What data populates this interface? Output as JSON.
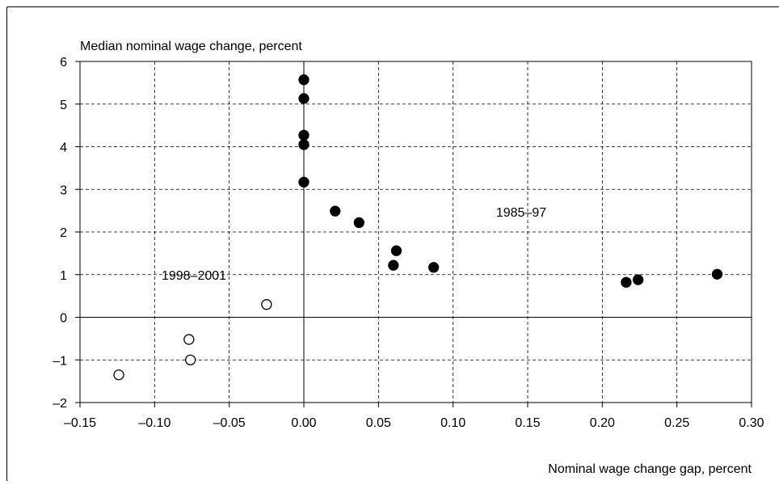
{
  "chart_data": {
    "type": "scatter",
    "ylabel": "Median nominal wage change, percent",
    "xlabel": "Nominal wage change gap, percent",
    "xlim": [
      -0.15,
      0.3
    ],
    "ylim": [
      -2,
      6
    ],
    "xticks": [
      {
        "value": -0.15,
        "label": "–0.15"
      },
      {
        "value": -0.1,
        "label": "–0.10"
      },
      {
        "value": -0.05,
        "label": "–0.05"
      },
      {
        "value": 0,
        "label": "0.00"
      },
      {
        "value": 0.05,
        "label": "0.05"
      },
      {
        "value": 0.1,
        "label": "0.10"
      },
      {
        "value": 0.15,
        "label": "0.15"
      },
      {
        "value": 0.2,
        "label": "0.20"
      },
      {
        "value": 0.25,
        "label": "0.25"
      },
      {
        "value": 0.3,
        "label": "0.30"
      }
    ],
    "yticks": [
      {
        "value": -2,
        "label": "–2"
      },
      {
        "value": -1,
        "label": "–1"
      },
      0,
      1,
      2,
      3,
      4,
      5,
      6
    ],
    "grid": true,
    "series": [
      {
        "name": "1985–97",
        "color": "#000000",
        "filled": true,
        "x": [
          0,
          0,
          0,
          0,
          0,
          0.021,
          0.037,
          0.062,
          0.06,
          0.087,
          0.216,
          0.224,
          0.277
        ],
        "values": [
          5.57,
          5.13,
          4.27,
          4.05,
          3.17,
          2.49,
          2.22,
          1.56,
          1.22,
          1.17,
          0.82,
          0.88,
          1.01
        ]
      },
      {
        "name": "1998–2001",
        "color": "#000000",
        "filled": false,
        "x": [
          -0.025,
          -0.077,
          -0.076,
          -0.124
        ],
        "values": [
          0.3,
          -0.52,
          -1.0,
          -1.35
        ]
      }
    ]
  }
}
